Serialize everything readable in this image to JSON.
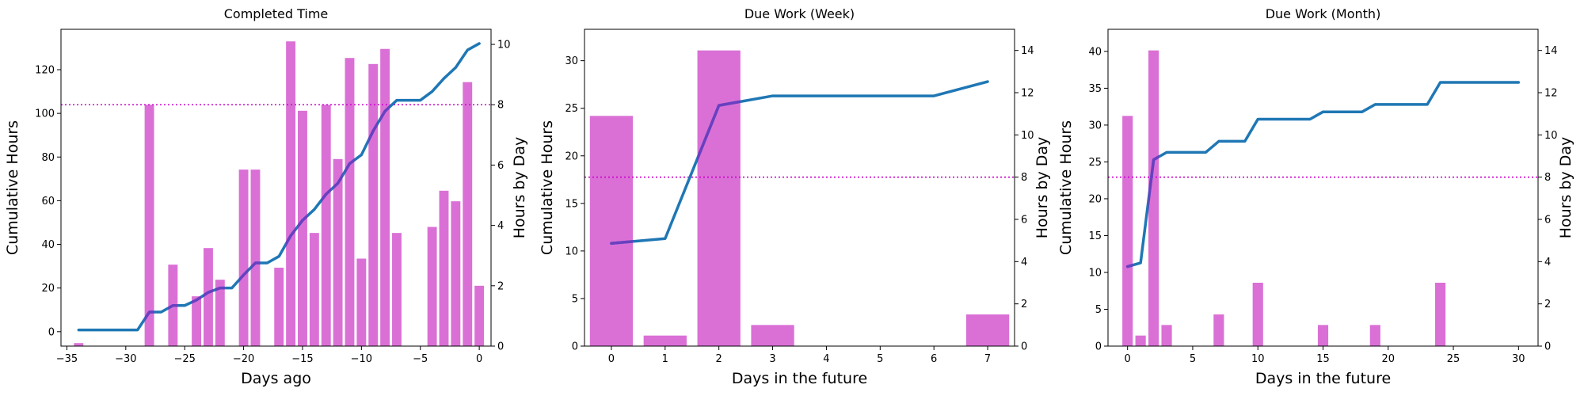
{
  "chart_data": [
    {
      "type": "bar",
      "title": "Completed Time",
      "xlabel": "Days ago",
      "ylabel": "Cumulative Hours",
      "y2label": "Hours by Day",
      "xlim": [
        -35.5,
        1.0
      ],
      "ylim": [
        -6.6,
        138.5
      ],
      "y2lim": [
        0,
        10.5
      ],
      "xticks": [
        -35,
        -30,
        -25,
        -20,
        -15,
        -10,
        -5,
        0
      ],
      "xtick_labels": [
        "−35",
        "−30",
        "−25",
        "−20",
        "−15",
        "−10",
        "−5",
        "0"
      ],
      "yticks": [
        0,
        20,
        40,
        60,
        80,
        100,
        120
      ],
      "y2ticks": [
        0,
        2,
        4,
        6,
        8,
        10
      ],
      "bar_width": 0.8,
      "bar_color": "#da70d6",
      "bars": {
        "x": [
          -34,
          -28,
          -26,
          -24,
          -23,
          -22,
          -20,
          -19,
          -17,
          -16,
          -15,
          -14,
          -13,
          -12,
          -11,
          -10,
          -9,
          -8,
          -7,
          -4,
          -3,
          -2,
          -1,
          0
        ],
        "values": [
          0.1,
          8.0,
          2.7,
          1.65,
          3.25,
          2.2,
          5.85,
          5.85,
          2.6,
          10.1,
          7.8,
          3.75,
          8.0,
          6.2,
          9.55,
          2.9,
          9.35,
          9.85,
          3.75,
          3.95,
          5.15,
          4.8,
          8.75,
          2.0
        ]
      },
      "line_color": "#1f77b4",
      "line_overlap_color": "#6a3fc0",
      "line": {
        "x": [
          -34,
          -33,
          -32,
          -31,
          -30,
          -29,
          -28,
          -27,
          -26,
          -25,
          -24,
          -23,
          -22,
          -21,
          -20,
          -19,
          -18,
          -17,
          -16,
          -15,
          -14,
          -13,
          -12,
          -11,
          -10,
          -9,
          -8,
          -7,
          -6,
          -5,
          -4,
          -3,
          -2,
          -1,
          0
        ],
        "y": [
          0.8,
          0.8,
          0.8,
          0.8,
          0.8,
          0.8,
          9,
          9,
          12,
          12,
          14.5,
          18,
          20,
          20,
          26,
          31.5,
          31.5,
          34.5,
          44,
          51,
          56,
          63,
          68,
          77,
          81,
          92,
          101,
          106,
          106,
          106,
          110,
          116,
          121,
          129,
          132
        ]
      },
      "hline": 8,
      "hline_color": "#cc00cc"
    },
    {
      "type": "bar",
      "title": "Due Work (Week)",
      "xlabel": "Days in the future",
      "ylabel": "Cumulative Hours",
      "y2label": "Hours by Day",
      "xlim": [
        -0.5,
        7.5
      ],
      "ylim": [
        0,
        33.3
      ],
      "y2lim": [
        0,
        15.0
      ],
      "xticks": [
        0,
        1,
        2,
        3,
        4,
        5,
        6,
        7
      ],
      "xtick_labels": [
        "0",
        "1",
        "2",
        "3",
        "4",
        "5",
        "6",
        "7"
      ],
      "yticks": [
        0,
        5,
        10,
        15,
        20,
        25,
        30
      ],
      "y2ticks": [
        0,
        2,
        4,
        6,
        8,
        10,
        12,
        14
      ],
      "bar_width": 0.8,
      "bar_color": "#da70d6",
      "bars": {
        "x": [
          0,
          1,
          2,
          3,
          7
        ],
        "values": [
          10.9,
          0.5,
          14.0,
          1.0,
          1.5
        ]
      },
      "line_color": "#1f77b4",
      "line_overlap_color": "#6a3fc0",
      "line": {
        "x": [
          0,
          1,
          2,
          3,
          4,
          5,
          6,
          7
        ],
        "y": [
          10.8,
          11.3,
          25.3,
          26.3,
          26.3,
          26.3,
          26.3,
          27.8
        ]
      },
      "hline": 8,
      "hline_color": "#cc00cc"
    },
    {
      "type": "bar",
      "title": "Due Work (Month)",
      "xlabel": "Days in the future",
      "ylabel": "Cumulative Hours",
      "y2label": "Hours by Day",
      "xlim": [
        -1.5,
        31.5
      ],
      "ylim": [
        0,
        43.0
      ],
      "y2lim": [
        0,
        15.0
      ],
      "xticks": [
        0,
        5,
        10,
        15,
        20,
        25,
        30
      ],
      "xtick_labels": [
        "0",
        "5",
        "10",
        "15",
        "20",
        "25",
        "30"
      ],
      "yticks": [
        0,
        5,
        10,
        15,
        20,
        25,
        30,
        35,
        40
      ],
      "y2ticks": [
        0,
        2,
        4,
        6,
        8,
        10,
        12,
        14
      ],
      "bar_width": 0.8,
      "bar_color": "#da70d6",
      "bars": {
        "x": [
          0,
          1,
          2,
          3,
          7,
          10,
          15,
          19,
          24
        ],
        "values": [
          10.9,
          0.5,
          14.0,
          1.0,
          1.5,
          3.0,
          1.0,
          1.0,
          3.0
        ]
      },
      "line_color": "#1f77b4",
      "line_overlap_color": "#6a3fc0",
      "line": {
        "x": [
          0,
          1,
          2,
          3,
          4,
          5,
          6,
          7,
          8,
          9,
          10,
          11,
          12,
          13,
          14,
          15,
          16,
          17,
          18,
          19,
          20,
          21,
          22,
          23,
          24,
          25,
          26,
          27,
          28,
          29,
          30
        ],
        "y": [
          10.8,
          11.3,
          25.3,
          26.3,
          26.3,
          26.3,
          26.3,
          27.8,
          27.8,
          27.8,
          30.8,
          30.8,
          30.8,
          30.8,
          30.8,
          31.8,
          31.8,
          31.8,
          31.8,
          32.8,
          32.8,
          32.8,
          32.8,
          32.8,
          35.8,
          35.8,
          35.8,
          35.8,
          35.8,
          35.8,
          35.8
        ]
      },
      "hline": 8,
      "hline_color": "#cc00cc"
    }
  ]
}
